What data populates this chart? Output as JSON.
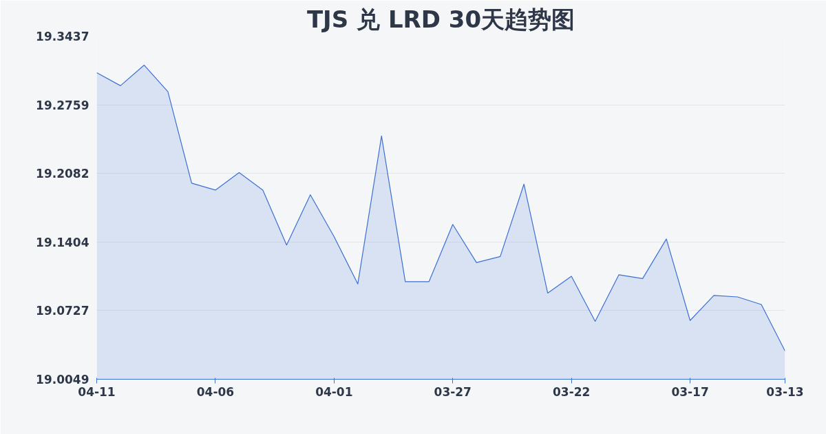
{
  "chart_data": {
    "type": "area",
    "title": "TJS 兑 LRD 30天趋势图",
    "categories": [
      "04-11",
      null,
      null,
      null,
      null,
      "04-06",
      null,
      null,
      null,
      null,
      "04-01",
      null,
      null,
      null,
      null,
      "03-27",
      null,
      null,
      null,
      null,
      "03-22",
      null,
      null,
      null,
      null,
      "03-17",
      null,
      null,
      null,
      "03-13"
    ],
    "series": [
      {
        "color": "#3b6fd4",
        "values": [
          19.3076,
          19.2948,
          19.3151,
          19.2888,
          19.1985,
          19.1917,
          19.209,
          19.1917,
          19.1374,
          19.1871,
          19.1457,
          19.099,
          19.2451,
          19.1013,
          19.1013,
          19.1578,
          19.1201,
          19.1261,
          19.1976,
          19.09,
          19.1066,
          19.0621,
          19.1081,
          19.1043,
          19.1434,
          19.0629,
          19.0877,
          19.0862,
          19.0787,
          19.0328
        ]
      }
    ],
    "ylim": [
      19.0049,
      19.3437
    ],
    "yticks": [
      19.0049,
      19.0727,
      19.1404,
      19.2082,
      19.2759,
      19.3437
    ],
    "grid": "y"
  }
}
